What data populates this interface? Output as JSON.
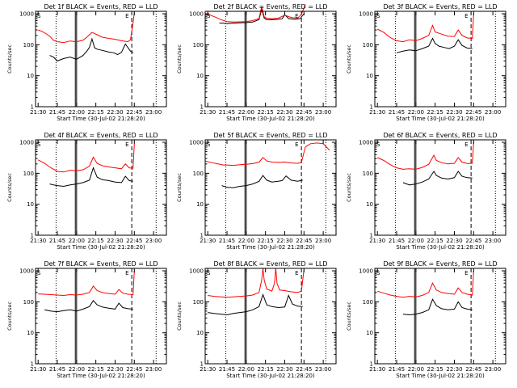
{
  "figure": {
    "colors": {
      "events": "#000000",
      "lld": "#ff0000",
      "background": "#ffffff"
    }
  },
  "chart_data": [
    {
      "type": "line",
      "title": "Det 1f BLACK = Events, RED = LLD",
      "xlabel": "Start Time (30-Jul-02 21:28:20)",
      "ylabel": "Counts/sec",
      "xticks": [
        "21:30",
        "21:45",
        "22:00",
        "22:15",
        "22:30",
        "22:45",
        "23:00"
      ],
      "yticks": [
        "1",
        "10",
        "100",
        "1000"
      ],
      "yscale": "log",
      "xlim": [
        "21:28",
        "23:10"
      ],
      "ylim": [
        1,
        1200
      ],
      "series": [
        {
          "color": "#000000",
          "x": [
            "21:39",
            "21:42",
            "21:45",
            "21:50",
            "21:55",
            "22:00",
            "22:05",
            "22:08",
            "22:10",
            "22:12",
            "22:14",
            "22:16",
            "22:20",
            "22:25",
            "22:29",
            "22:32",
            "22:35",
            "22:38",
            "22:42",
            "22:44"
          ],
          "y": [
            45,
            40,
            30,
            36,
            40,
            34,
            45,
            62,
            82,
            155,
            80,
            72,
            66,
            58,
            55,
            48,
            57,
            105,
            62,
            55
          ]
        },
        {
          "color": "#ff0000",
          "x": [
            "21:30",
            "21:33",
            "21:36",
            "21:39",
            "21:42",
            "21:45",
            "21:50",
            "21:55",
            "22:00",
            "22:05",
            "22:08",
            "22:12",
            "22:16",
            "22:20",
            "22:25",
            "22:30",
            "22:35",
            "22:40",
            "22:42",
            "22:44",
            "22:45"
          ],
          "y": [
            300,
            270,
            230,
            190,
            140,
            125,
            118,
            132,
            125,
            140,
            175,
            250,
            210,
            175,
            160,
            150,
            135,
            125,
            145,
            500,
            1100
          ]
        }
      ]
    },
    {
      "type": "line",
      "title": "Det 2f BLACK = Events, RED = LLD",
      "xlabel": "Start Time (30-Jul-02 21:28:20)",
      "ylabel": "Counts/sec",
      "xticks": [
        "21:30",
        "21:45",
        "22:00",
        "22:15",
        "22:30",
        "22:45",
        "23:00"
      ],
      "yticks": [
        "1",
        "10",
        "100",
        "1000"
      ],
      "yscale": "log",
      "xlim": [
        "21:28",
        "23:10"
      ],
      "ylim": [
        1,
        1200
      ],
      "series": [
        {
          "color": "#000000",
          "x": [
            "21:39",
            "21:42",
            "21:45",
            "21:50",
            "21:55",
            "22:00",
            "22:05",
            "22:10",
            "22:12",
            "22:14",
            "22:16",
            "22:20",
            "22:25",
            "22:28",
            "22:30",
            "22:33",
            "22:38",
            "22:42",
            "22:45"
          ],
          "y": [
            500,
            500,
            480,
            500,
            510,
            520,
            540,
            650,
            1400,
            720,
            650,
            640,
            660,
            690,
            930,
            700,
            660,
            700,
            1000
          ]
        },
        {
          "color": "#ff0000",
          "x": [
            "21:28",
            "21:32",
            "21:36",
            "21:40",
            "21:45",
            "21:50",
            "21:55",
            "22:00",
            "22:05",
            "22:10",
            "22:12",
            "22:14",
            "22:16",
            "22:20",
            "22:25",
            "22:30",
            "22:35",
            "22:40",
            "22:43",
            "22:46"
          ],
          "y": [
            1000,
            900,
            780,
            650,
            560,
            540,
            550,
            560,
            600,
            700,
            1700,
            800,
            720,
            700,
            720,
            900,
            760,
            720,
            950,
            2000
          ]
        }
      ]
    },
    {
      "type": "line",
      "title": "Det 3f BLACK = Events, RED = LLD",
      "xlabel": "Start Time (30-Jul-02 21:28:20)",
      "ylabel": "Counts/sec",
      "xticks": [
        "21:30",
        "21:45",
        "22:00",
        "22:15",
        "22:30",
        "22:45",
        "23:00"
      ],
      "yticks": [
        "1",
        "10",
        "100",
        "1000"
      ],
      "yscale": "log",
      "xlim": [
        "21:28",
        "23:10"
      ],
      "ylim": [
        1,
        1200
      ],
      "series": [
        {
          "color": "#000000",
          "x": [
            "21:45",
            "21:50",
            "21:55",
            "22:00",
            "22:05",
            "22:10",
            "22:13",
            "22:15",
            "22:18",
            "22:22",
            "22:26",
            "22:30",
            "22:33",
            "22:36",
            "22:40",
            "22:44"
          ],
          "y": [
            55,
            62,
            68,
            64,
            75,
            90,
            160,
            110,
            90,
            82,
            75,
            90,
            145,
            95,
            78,
            75
          ]
        },
        {
          "color": "#ff0000",
          "x": [
            "21:30",
            "21:35",
            "21:40",
            "21:45",
            "21:50",
            "21:55",
            "22:00",
            "22:05",
            "22:10",
            "22:13",
            "22:15",
            "22:20",
            "22:25",
            "22:30",
            "22:33",
            "22:36",
            "22:40",
            "22:44",
            "22:45"
          ],
          "y": [
            320,
            250,
            170,
            135,
            125,
            145,
            135,
            160,
            200,
            420,
            260,
            220,
            190,
            185,
            300,
            200,
            165,
            160,
            1000
          ]
        }
      ]
    },
    {
      "type": "line",
      "title": "Det 4f BLACK = Events, RED = LLD",
      "xlabel": "Start Time (30-Jul-02 21:28:20)",
      "ylabel": "Counts/sec",
      "xticks": [
        "21:30",
        "21:45",
        "22:00",
        "22:15",
        "22:30",
        "22:45",
        "23:00"
      ],
      "yticks": [
        "1",
        "10",
        "100",
        "1000"
      ],
      "yscale": "log",
      "xlim": [
        "21:28",
        "23:10"
      ],
      "ylim": [
        1,
        1200
      ],
      "series": [
        {
          "color": "#000000",
          "x": [
            "21:39",
            "21:42",
            "21:45",
            "21:50",
            "21:55",
            "22:00",
            "22:05",
            "22:10",
            "22:13",
            "22:16",
            "22:20",
            "22:25",
            "22:30",
            "22:35",
            "22:38",
            "22:41",
            "22:44"
          ],
          "y": [
            45,
            42,
            40,
            38,
            42,
            45,
            50,
            60,
            150,
            75,
            62,
            58,
            52,
            50,
            80,
            58,
            55
          ]
        },
        {
          "color": "#ff0000",
          "x": [
            "21:30",
            "21:35",
            "21:40",
            "21:45",
            "21:50",
            "21:55",
            "22:00",
            "22:05",
            "22:10",
            "22:13",
            "22:16",
            "22:20",
            "22:25",
            "22:30",
            "22:35",
            "22:38",
            "22:41",
            "22:44",
            "22:45"
          ],
          "y": [
            270,
            210,
            150,
            115,
            110,
            125,
            120,
            130,
            170,
            330,
            210,
            175,
            160,
            150,
            140,
            200,
            150,
            145,
            900
          ]
        }
      ]
    },
    {
      "type": "line",
      "title": "Det 5f BLACK = Events, RED = LLD",
      "xlabel": "Start Time (30-Jul-02 21:28:20)",
      "ylabel": "Counts/sec",
      "xticks": [
        "21:30",
        "21:45",
        "22:00",
        "22:15",
        "22:30",
        "22:45",
        "23:00"
      ],
      "yticks": [
        "1",
        "10",
        "100",
        "1000"
      ],
      "yscale": "log",
      "xlim": [
        "21:28",
        "23:10"
      ],
      "ylim": [
        1,
        1200
      ],
      "series": [
        {
          "color": "#000000",
          "x": [
            "21:41",
            "21:45",
            "21:50",
            "21:55",
            "22:00",
            "22:05",
            "22:10",
            "22:13",
            "22:16",
            "22:20",
            "22:25",
            "22:28",
            "22:31",
            "22:35",
            "22:40",
            "22:44"
          ],
          "y": [
            40,
            35,
            34,
            38,
            40,
            45,
            55,
            85,
            60,
            52,
            55,
            58,
            82,
            60,
            55,
            60
          ]
        },
        {
          "color": "#ff0000",
          "x": [
            "21:28",
            "21:33",
            "21:38",
            "21:42",
            "21:45",
            "21:50",
            "21:55",
            "22:00",
            "22:05",
            "22:10",
            "22:13",
            "22:16",
            "22:20",
            "22:25",
            "22:30",
            "22:35",
            "22:40",
            "22:43",
            "22:46",
            "22:50",
            "22:55",
            "23:00",
            "23:05"
          ],
          "y": [
            250,
            220,
            200,
            185,
            185,
            180,
            190,
            195,
            205,
            230,
            320,
            250,
            230,
            225,
            230,
            215,
            210,
            220,
            700,
            900,
            950,
            900,
            550
          ]
        }
      ]
    },
    {
      "type": "line",
      "title": "Det 6f BLACK = Events, RED = LLD",
      "xlabel": "Start Time (30-Jul-02 21:28:20)",
      "ylabel": "Counts/sec",
      "xticks": [
        "21:30",
        "21:45",
        "22:00",
        "22:15",
        "22:30",
        "22:45",
        "23:00"
      ],
      "yticks": [
        "1",
        "10",
        "100",
        "1000"
      ],
      "yscale": "log",
      "xlim": [
        "21:28",
        "23:10"
      ],
      "ylim": [
        1,
        1200
      ],
      "series": [
        {
          "color": "#000000",
          "x": [
            "21:50",
            "21:55",
            "22:00",
            "22:05",
            "22:10",
            "22:14",
            "22:16",
            "22:20",
            "22:25",
            "22:30",
            "22:33",
            "22:36",
            "22:40",
            "22:44"
          ],
          "y": [
            50,
            42,
            45,
            52,
            65,
            115,
            85,
            70,
            65,
            72,
            115,
            80,
            72,
            70
          ]
        },
        {
          "color": "#ff0000",
          "x": [
            "21:30",
            "21:35",
            "21:40",
            "21:45",
            "21:50",
            "21:55",
            "22:00",
            "22:05",
            "22:10",
            "22:14",
            "22:16",
            "22:20",
            "22:25",
            "22:30",
            "22:33",
            "22:36",
            "22:40",
            "22:44",
            "22:45"
          ],
          "y": [
            320,
            260,
            190,
            150,
            135,
            140,
            135,
            155,
            195,
            380,
            260,
            220,
            200,
            210,
            320,
            230,
            205,
            210,
            1000
          ]
        }
      ]
    },
    {
      "type": "line",
      "title": "Det 7f BLACK = Events, RED = LLD",
      "xlabel": "Start Time (30-Jul-02 21:28:20)",
      "ylabel": "Counts/sec",
      "xticks": [
        "21:30",
        "21:45",
        "22:00",
        "22:15",
        "22:30",
        "22:45",
        "23:00"
      ],
      "yticks": [
        "1",
        "10",
        "100",
        "1000"
      ],
      "yscale": "log",
      "xlim": [
        "21:28",
        "23:10"
      ],
      "ylim": [
        1,
        1200
      ],
      "series": [
        {
          "color": "#000000",
          "x": [
            "21:35",
            "21:40",
            "21:45",
            "21:50",
            "21:55",
            "22:00",
            "22:05",
            "22:10",
            "22:13",
            "22:16",
            "22:20",
            "22:25",
            "22:30",
            "22:33",
            "22:36",
            "22:40",
            "22:44"
          ],
          "y": [
            55,
            50,
            48,
            52,
            55,
            50,
            58,
            70,
            110,
            80,
            68,
            62,
            58,
            90,
            65,
            60,
            58
          ]
        },
        {
          "color": "#ff0000",
          "x": [
            "21:30",
            "21:35",
            "21:40",
            "21:45",
            "21:50",
            "21:55",
            "22:00",
            "22:05",
            "22:10",
            "22:13",
            "22:16",
            "22:20",
            "22:25",
            "22:30",
            "22:33",
            "22:36",
            "22:40",
            "22:44",
            "22:45"
          ],
          "y": [
            180,
            175,
            170,
            165,
            160,
            170,
            165,
            175,
            200,
            320,
            230,
            200,
            185,
            175,
            250,
            190,
            175,
            170,
            1000
          ]
        }
      ]
    },
    {
      "type": "line",
      "title": "Det 8f BLACK = Events, RED = LLD",
      "xlabel": "Start Time (30-Jul-02 21:28:20)",
      "ylabel": "Counts/sec",
      "xticks": [
        "21:30",
        "21:45",
        "22:00",
        "22:15",
        "22:30",
        "22:45",
        "23:00"
      ],
      "yticks": [
        "1",
        "10",
        "100",
        "1000"
      ],
      "yscale": "log",
      "xlim": [
        "21:28",
        "23:10"
      ],
      "ylim": [
        1,
        1200
      ],
      "series": [
        {
          "color": "#000000",
          "x": [
            "21:30",
            "21:35",
            "21:40",
            "21:45",
            "21:50",
            "21:55",
            "22:00",
            "22:05",
            "22:10",
            "22:13",
            "22:16",
            "22:20",
            "22:25",
            "22:30",
            "22:33",
            "22:36",
            "22:40",
            "22:44"
          ],
          "y": [
            45,
            42,
            40,
            38,
            42,
            45,
            48,
            55,
            70,
            170,
            80,
            70,
            65,
            68,
            160,
            85,
            72,
            70
          ]
        },
        {
          "color": "#ff0000",
          "x": [
            "21:30",
            "21:35",
            "21:40",
            "21:45",
            "21:50",
            "21:55",
            "22:00",
            "22:05",
            "22:10",
            "22:12",
            "22:13",
            "22:14",
            "22:16",
            "22:20",
            "22:22",
            "22:23",
            "22:24",
            "22:26",
            "22:30",
            "22:35",
            "22:40",
            "22:43",
            "22:45"
          ],
          "y": [
            160,
            150,
            145,
            140,
            145,
            150,
            155,
            165,
            200,
            500,
            1200,
            500,
            260,
            220,
            400,
            1200,
            400,
            240,
            230,
            210,
            200,
            220,
            1100
          ]
        }
      ]
    },
    {
      "type": "line",
      "title": "Det 9f BLACK = Events, RED = LLD",
      "xlabel": "Start Time (30-Jul-02 21:28:20)",
      "ylabel": "Counts/sec",
      "xticks": [
        "21:30",
        "21:45",
        "22:00",
        "22:15",
        "22:30",
        "22:45",
        "23:00"
      ],
      "yticks": [
        "1",
        "10",
        "100",
        "1000"
      ],
      "yscale": "log",
      "xlim": [
        "21:28",
        "23:10"
      ],
      "ylim": [
        1,
        1200
      ],
      "series": [
        {
          "color": "#000000",
          "x": [
            "21:50",
            "21:55",
            "22:00",
            "22:05",
            "22:10",
            "22:13",
            "22:16",
            "22:20",
            "22:25",
            "22:30",
            "22:33",
            "22:36",
            "22:40",
            "22:44"
          ],
          "y": [
            40,
            38,
            40,
            45,
            55,
            120,
            75,
            60,
            55,
            58,
            100,
            65,
            58,
            55
          ]
        },
        {
          "color": "#ff0000",
          "x": [
            "21:30",
            "21:35",
            "21:40",
            "21:45",
            "21:50",
            "21:55",
            "22:00",
            "22:05",
            "22:10",
            "22:13",
            "22:16",
            "22:20",
            "22:25",
            "22:30",
            "22:33",
            "22:36",
            "22:40",
            "22:44",
            "22:45"
          ],
          "y": [
            220,
            190,
            165,
            150,
            140,
            150,
            145,
            160,
            200,
            400,
            240,
            200,
            185,
            175,
            280,
            200,
            175,
            165,
            1000
          ]
        }
      ]
    }
  ]
}
